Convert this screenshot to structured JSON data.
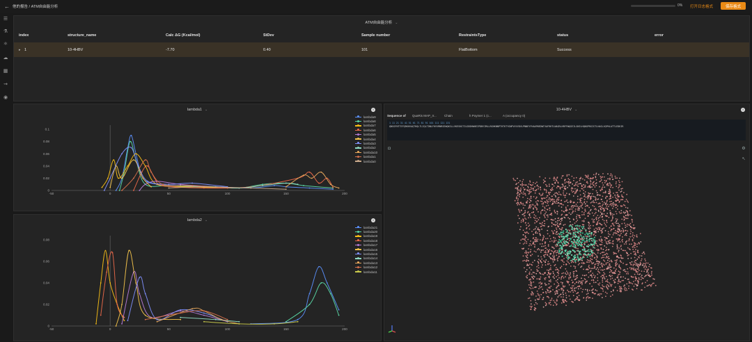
{
  "header": {
    "back_icon": "back-arrow-icon",
    "breadcrumb": "他的报告 / ATM自由能分析",
    "progress_percent": 0,
    "progress_text": "0%",
    "link": "打开日志格式",
    "button": "保存格式"
  },
  "sidebar": {
    "icons": [
      "list-icon",
      "flow-icon",
      "molecule-icon",
      "cloud-icon",
      "grid-icon",
      "pipeline-icon",
      "globe-icon"
    ]
  },
  "table_panel": {
    "title": "ATM自由能分析",
    "columns": [
      "index",
      "structure_name",
      "Calc ΔG (Kcal/mol)",
      "StDev",
      "Sample number",
      "RestraintsType",
      "status",
      "error"
    ],
    "rows": [
      {
        "expand": "▸",
        "index": "1",
        "structure_name": "10-4HBV",
        "dg": "-7.70",
        "stdev": "0.40",
        "samples": "101",
        "restraint": "FlatBottom",
        "status": "Success",
        "error": ""
      }
    ]
  },
  "chart1_panel": {
    "title": "lambda1"
  },
  "chart2_panel": {
    "title": "lambda2"
  },
  "chart_data": [
    {
      "type": "line",
      "title": "lambda1",
      "xlim": [
        -50,
        200
      ],
      "ylim": [
        0,
        0.1
      ],
      "x_ticks": [
        "-50",
        "0",
        "50",
        "100",
        "150",
        "200"
      ],
      "y_ticks": [
        "0",
        "0.02",
        "0.04",
        "0.06",
        "0.08",
        "0.1"
      ],
      "legend_position": "right",
      "series": [
        {
          "name": "lambda9",
          "color": "#5b8ff9",
          "points": [
            [
              5,
              0
            ],
            [
              10,
              0.02
            ],
            [
              15,
              0.07
            ],
            [
              18,
              0.09
            ],
            [
              22,
              0.06
            ],
            [
              28,
              0.02
            ],
            [
              40,
              0.01
            ],
            [
              60,
              0.008
            ],
            [
              90,
              0.006
            ],
            [
              120,
              0.004
            ],
            [
              140,
              0.008
            ],
            [
              150,
              0.006
            ],
            [
              170,
              0.004
            ],
            [
              190,
              0.002
            ]
          ]
        },
        {
          "name": "lambda8",
          "color": "#5ad8a6",
          "points": [
            [
              8,
              0
            ],
            [
              12,
              0.03
            ],
            [
              17,
              0.08
            ],
            [
              22,
              0.05
            ],
            [
              30,
              0.01
            ],
            [
              50,
              0.008
            ],
            [
              80,
              0.006
            ],
            [
              110,
              0.004
            ],
            [
              130,
              0.01
            ],
            [
              150,
              0.012
            ],
            [
              165,
              0.008
            ],
            [
              190,
              0.004
            ]
          ]
        },
        {
          "name": "lambda7",
          "color": "#f6bd16",
          "points": [
            [
              -7,
              0.005
            ],
            [
              -2,
              0.02
            ],
            [
              3,
              0.05
            ],
            [
              7,
              0.02
            ],
            [
              15,
              0.04
            ],
            [
              22,
              0.06
            ],
            [
              30,
              0.04
            ],
            [
              40,
              0.01
            ],
            [
              70,
              0.006
            ],
            [
              100,
              0.004
            ]
          ]
        },
        {
          "name": "lambda6",
          "color": "#e8684a",
          "points": [
            [
              20,
              0
            ],
            [
              27,
              0.03
            ],
            [
              32,
              0.04
            ],
            [
              38,
              0.02
            ],
            [
              45,
              0.008
            ],
            [
              80,
              0.004
            ],
            [
              120,
              0.006
            ],
            [
              160,
              0.02
            ],
            [
              170,
              0.03
            ],
            [
              178,
              0.012
            ],
            [
              185,
              0.02
            ],
            [
              190,
              0.005
            ]
          ]
        },
        {
          "name": "lambda5",
          "color": "#b57bd6",
          "points": [
            [
              25,
              0
            ],
            [
              30,
              0.01
            ],
            [
              40,
              0.015
            ],
            [
              60,
              0.01
            ],
            [
              90,
              0.006
            ],
            [
              110,
              0.004
            ]
          ]
        },
        {
          "name": "lambda4",
          "color": "#f0c14b",
          "points": [
            [
              0,
              0.005
            ],
            [
              5,
              0.04
            ],
            [
              10,
              0.02
            ],
            [
              20,
              0.05
            ],
            [
              28,
              0.02
            ],
            [
              35,
              0.006
            ]
          ]
        },
        {
          "name": "lambda3",
          "color": "#7e8ef9",
          "points": [
            [
              -5,
              0
            ],
            [
              0,
              0.02
            ],
            [
              10,
              0.06
            ],
            [
              18,
              0.07
            ],
            [
              24,
              0.04
            ],
            [
              32,
              0.015
            ],
            [
              50,
              0.01
            ],
            [
              70,
              0.012
            ],
            [
              100,
              0.006
            ]
          ]
        },
        {
          "name": "lambda2",
          "color": "#8fd8c0",
          "points": [
            [
              60,
              0.008
            ],
            [
              90,
              0.006
            ],
            [
              110,
              0.004
            ],
            [
              130,
              0.008
            ],
            [
              150,
              0.012
            ],
            [
              160,
              0.01
            ]
          ]
        },
        {
          "name": "lambda10",
          "color": "#e8a85c",
          "points": [
            [
              150,
              0.006
            ],
            [
              165,
              0.025
            ],
            [
              172,
              0.02
            ],
            [
              180,
              0.03
            ],
            [
              188,
              0.01
            ],
            [
              195,
              0.004
            ]
          ]
        },
        {
          "name": "lambda1",
          "color": "#d5704b",
          "points": [
            [
              10,
              0
            ],
            [
              20,
              0.02
            ],
            [
              30,
              0.05
            ],
            [
              35,
              0.03
            ],
            [
              45,
              0.01
            ],
            [
              70,
              0.008
            ],
            [
              100,
              0.004
            ]
          ]
        },
        {
          "name": "lambda0",
          "color": "#c9a98b",
          "points": [
            [
              50,
              0.004
            ],
            [
              80,
              0.006
            ],
            [
              120,
              0.004
            ],
            [
              150,
              0.002
            ]
          ]
        }
      ]
    },
    {
      "type": "line",
      "title": "lambda2",
      "xlim": [
        -50,
        200
      ],
      "ylim": [
        0,
        0.08
      ],
      "x_ticks": [
        "-50",
        "0",
        "50",
        "100",
        "150",
        "200"
      ],
      "y_ticks": [
        "0",
        "0.02",
        "0.04",
        "0.06",
        "0.08"
      ],
      "legend_position": "right",
      "series": [
        {
          "name": "lambda21",
          "color": "#5b8ff9",
          "points": [
            [
              120,
              0.002
            ],
            [
              160,
              0.006
            ],
            [
              170,
              0.03
            ],
            [
              178,
              0.055
            ],
            [
              185,
              0.04
            ],
            [
              195,
              0.015
            ]
          ]
        },
        {
          "name": "lambda20",
          "color": "#5ad8a6",
          "points": [
            [
              150,
              0.004
            ],
            [
              170,
              0.02
            ],
            [
              180,
              0.04
            ],
            [
              188,
              0.03
            ],
            [
              195,
              0.01
            ]
          ]
        },
        {
          "name": "lambda19",
          "color": "#f6bd16",
          "points": [
            [
              -12,
              0.002
            ],
            [
              -8,
              0.04
            ],
            [
              -4,
              0.07
            ],
            [
              0,
              0.04
            ],
            [
              6,
              0.02
            ],
            [
              12,
              0.005
            ]
          ]
        },
        {
          "name": "lambda18",
          "color": "#e8684a",
          "points": [
            [
              -8,
              0.01
            ],
            [
              -3,
              0.05
            ],
            [
              2,
              0.068
            ],
            [
              6,
              0.02
            ],
            [
              12,
              0.008
            ]
          ]
        },
        {
          "name": "lambda17",
          "color": "#b57bd6",
          "points": [
            [
              10,
              0.002
            ],
            [
              20,
              0.05
            ],
            [
              25,
              0.03
            ],
            [
              35,
              0.008
            ],
            [
              60,
              0.014
            ],
            [
              80,
              0.01
            ],
            [
              100,
              0.004
            ]
          ]
        },
        {
          "name": "lambda16",
          "color": "#f0c14b",
          "points": [
            [
              5,
              0
            ],
            [
              10,
              0.02
            ],
            [
              16,
              0.07
            ],
            [
              22,
              0.04
            ],
            [
              30,
              0.01
            ],
            [
              60,
              0.006
            ]
          ]
        },
        {
          "name": "lambda15",
          "color": "#7e8ef9",
          "points": [
            [
              15,
              0.005
            ],
            [
              25,
              0.045
            ],
            [
              30,
              0.03
            ],
            [
              40,
              0.006
            ],
            [
              60,
              0.015
            ],
            [
              80,
              0.012
            ],
            [
              100,
              0.004
            ]
          ]
        },
        {
          "name": "lambda14",
          "color": "#8fd8c0",
          "points": [
            [
              60,
              0.008
            ],
            [
              90,
              0.006
            ],
            [
              110,
              0.004
            ]
          ]
        },
        {
          "name": "lambda13",
          "color": "#e8a85c",
          "points": [
            [
              40,
              0.004
            ],
            [
              70,
              0.016
            ],
            [
              80,
              0.014
            ],
            [
              95,
              0.006
            ],
            [
              110,
              0.002
            ]
          ]
        },
        {
          "name": "lambda12",
          "color": "#d5704b",
          "points": [
            [
              30,
              0.006
            ],
            [
              60,
              0.012
            ],
            [
              80,
              0.014
            ],
            [
              100,
              0.006
            ]
          ]
        },
        {
          "name": "lambda11",
          "color": "#c9c94b",
          "points": [
            [
              80,
              0.004
            ],
            [
              110,
              0.002
            ],
            [
              140,
              0.002
            ],
            [
              160,
              0.004
            ]
          ]
        }
      ]
    }
  ],
  "structure_panel": {
    "title": "10-4HBV",
    "seq_label": "Sequence of",
    "seq_tabs": [
      "QuaRis MAP_Ir...",
      "Chain",
      "h Poymer 1 (c...",
      "A (occupancy 0)"
    ],
    "seq_numbers": "1          11         21         31         41         51         61         71         81         91         101        111        121        131",
    "sequence": "QNSGFNTTEFQRKHVAQTHQLTLIQLTDNLFHVVMNRSEWQKSLLVKESKGTILDDDHWHEIPDNYIMLLRGHKNNPTHTKTYGNPVVVVDVLPNNEYFHAAPNEDWTVAFRHTLNAGRLHRFFWQSEILGKELHQNGPRGISTLHAGLVQPHLATTLEDKIR"
  },
  "icons": {
    "info": "info-icon",
    "camera": "camera-icon",
    "settings": "settings-icon",
    "cursor": "pointer-icon",
    "axes": "axes-icon"
  }
}
